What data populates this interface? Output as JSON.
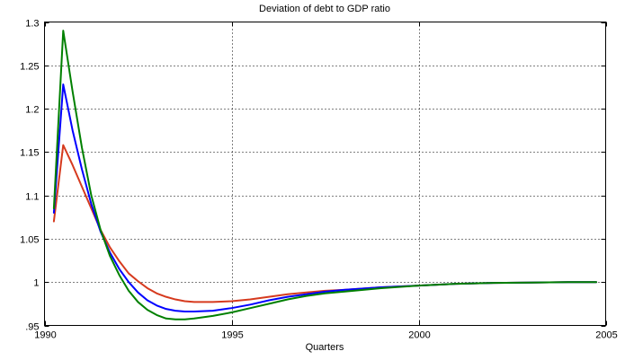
{
  "chart_data": {
    "type": "line",
    "title": "Deviation of debt to GDP ratio",
    "xlabel": "Quarters",
    "ylabel": "",
    "xlim": [
      1990,
      2005
    ],
    "ylim": [
      0.95,
      1.3
    ],
    "xticks": [
      1990,
      1995,
      2000,
      2005
    ],
    "yticks": [
      0.95,
      1,
      1.05,
      1.1,
      1.15,
      1.2,
      1.25,
      1.3
    ],
    "grid": true,
    "series": [
      {
        "color": "#d63a1e",
        "x": [
          1990.25,
          1990.5,
          1990.75,
          1991.0,
          1991.25,
          1991.5,
          1991.75,
          1992.0,
          1992.25,
          1992.5,
          1992.75,
          1993.0,
          1993.25,
          1993.5,
          1993.75,
          1994.0,
          1994.5,
          1995.0,
          1995.5,
          1996.0,
          1996.5,
          1997.0,
          1997.5,
          1998.0,
          1999.0,
          2000.0,
          2001.0,
          2002.0,
          2003.0,
          2004.0,
          2004.75
        ],
        "y": [
          1.07,
          1.158,
          1.135,
          1.11,
          1.085,
          1.06,
          1.04,
          1.024,
          1.01,
          1.001,
          0.993,
          0.987,
          0.983,
          0.98,
          0.978,
          0.977,
          0.977,
          0.978,
          0.98,
          0.983,
          0.986,
          0.988,
          0.99,
          0.991,
          0.994,
          0.996,
          0.998,
          0.999,
          0.9995,
          1.0,
          1.0
        ]
      },
      {
        "color": "#0000ff",
        "x": [
          1990.25,
          1990.5,
          1990.75,
          1991.0,
          1991.25,
          1991.5,
          1991.75,
          1992.0,
          1992.25,
          1992.5,
          1992.75,
          1993.0,
          1993.25,
          1993.5,
          1993.75,
          1994.0,
          1994.5,
          1995.0,
          1995.5,
          1996.0,
          1996.5,
          1997.0,
          1997.5,
          1998.0,
          1999.0,
          2000.0,
          2001.0,
          2002.0,
          2003.0,
          2004.0,
          2004.75
        ],
        "y": [
          1.08,
          1.228,
          1.175,
          1.13,
          1.09,
          1.058,
          1.034,
          1.015,
          1.0,
          0.988,
          0.979,
          0.973,
          0.969,
          0.967,
          0.966,
          0.966,
          0.967,
          0.97,
          0.974,
          0.979,
          0.983,
          0.986,
          0.989,
          0.991,
          0.994,
          0.996,
          0.998,
          0.999,
          0.9995,
          1.0,
          1.0
        ]
      },
      {
        "color": "#008000",
        "x": [
          1990.25,
          1990.5,
          1990.75,
          1991.0,
          1991.25,
          1991.5,
          1991.75,
          1992.0,
          1992.25,
          1992.5,
          1992.75,
          1993.0,
          1993.25,
          1993.5,
          1993.75,
          1994.0,
          1994.5,
          1995.0,
          1995.5,
          1996.0,
          1996.5,
          1997.0,
          1997.5,
          1998.0,
          1999.0,
          2000.0,
          2001.0,
          2002.0,
          2003.0,
          2004.0,
          2004.75
        ],
        "y": [
          1.085,
          1.29,
          1.22,
          1.155,
          1.1,
          1.06,
          1.03,
          1.008,
          0.99,
          0.977,
          0.968,
          0.962,
          0.958,
          0.957,
          0.957,
          0.958,
          0.961,
          0.965,
          0.97,
          0.975,
          0.98,
          0.984,
          0.987,
          0.989,
          0.993,
          0.996,
          0.998,
          0.999,
          0.9995,
          1.0,
          1.0
        ]
      }
    ]
  }
}
